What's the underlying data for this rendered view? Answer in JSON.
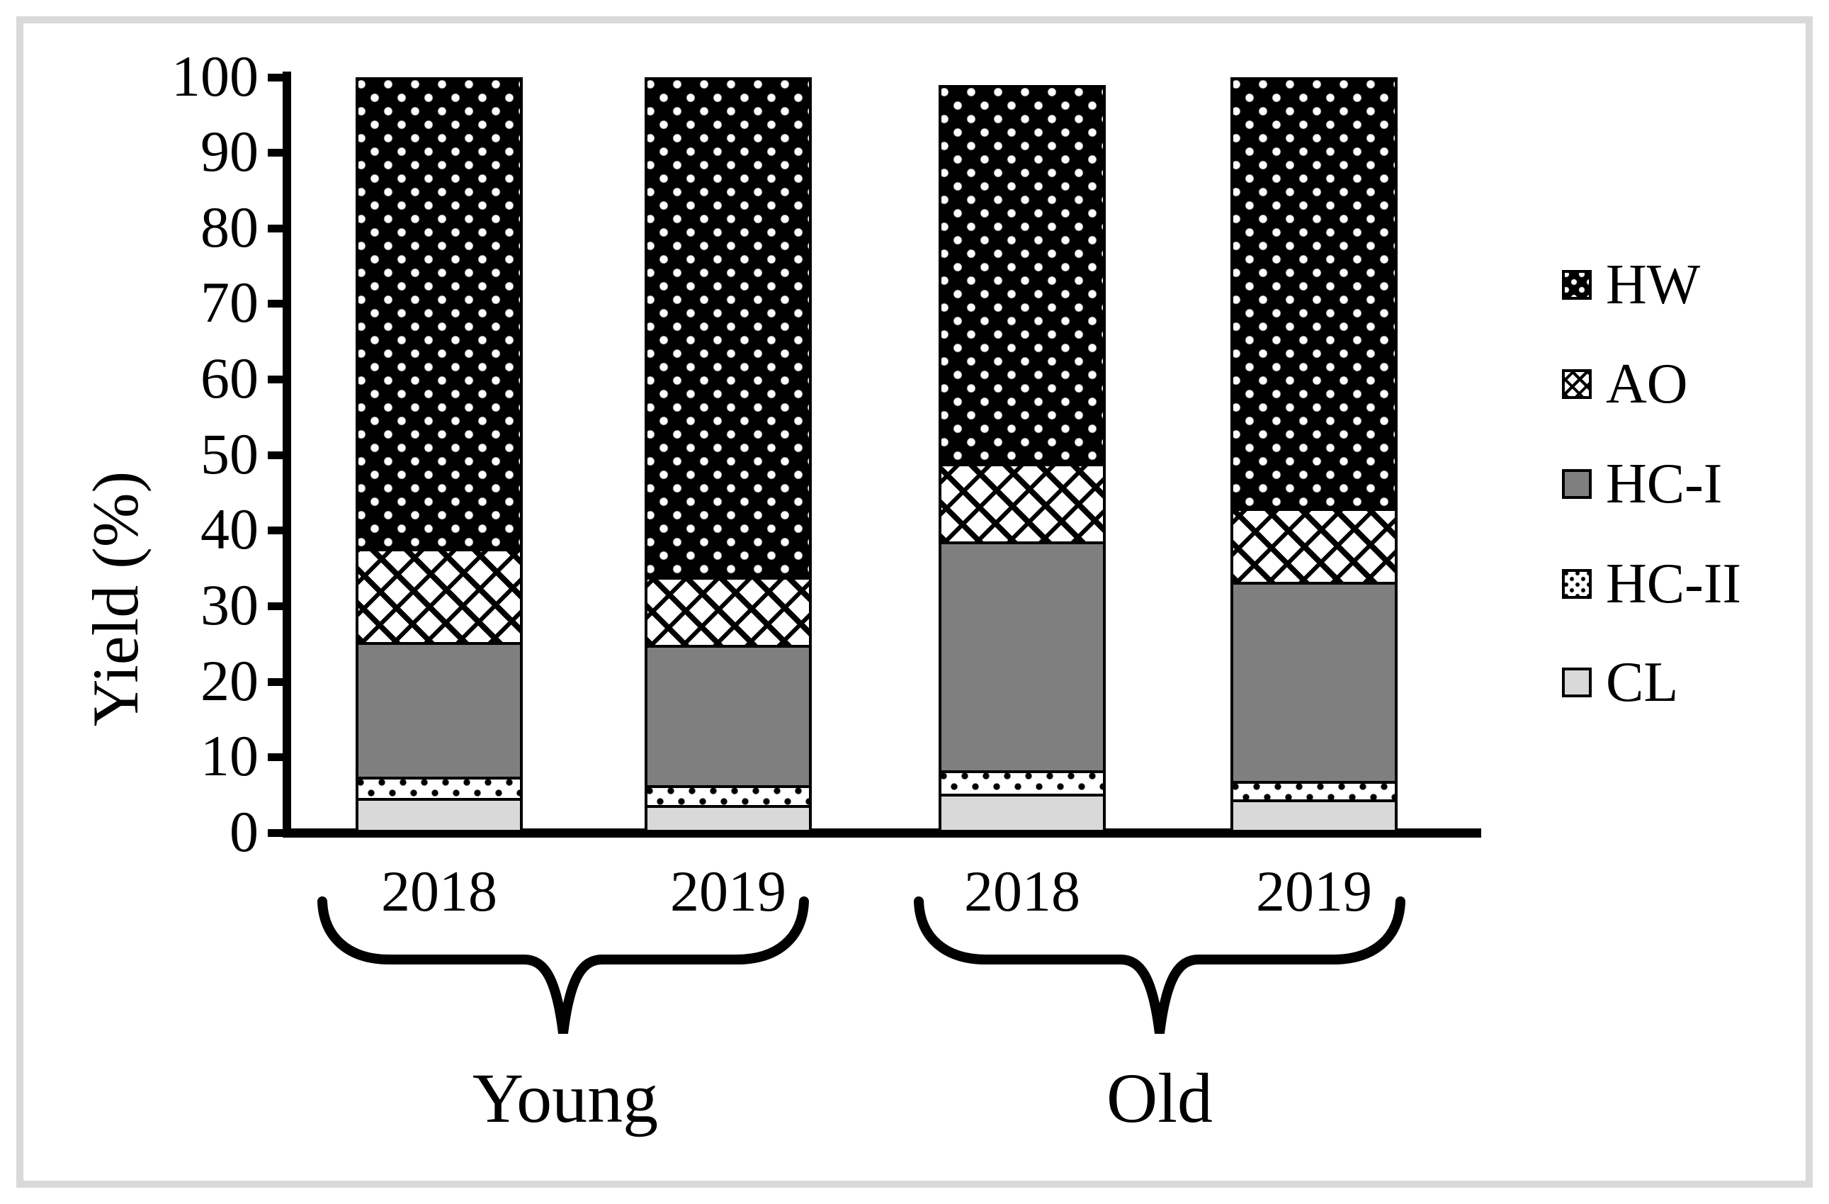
{
  "figure": {
    "border_color": "#d9d9d9",
    "background": "#ffffff"
  },
  "chart_data": {
    "type": "bar",
    "stacked": true,
    "title": "",
    "xlabel": "",
    "ylabel": "Yield (%)",
    "ylim": [
      0,
      100
    ],
    "ytick_step": 10,
    "yticks": [
      0,
      10,
      20,
      30,
      40,
      50,
      60,
      70,
      80,
      90,
      100
    ],
    "grid": false,
    "legend_position": "right",
    "groups": [
      {
        "label": "Young",
        "years": [
          "2018",
          "2019"
        ]
      },
      {
        "label": "Old",
        "years": [
          "2018",
          "2019"
        ]
      }
    ],
    "categories": [
      "Young 2018",
      "Young 2019",
      "Old 2018",
      "Old 2019"
    ],
    "bar_totals": [
      100,
      100,
      99,
      100
    ],
    "series": [
      {
        "name": "CL",
        "pattern": "solid-light",
        "color": "#d9d9d9",
        "values": [
          5.0,
          4.0,
          5.5,
          4.8
        ]
      },
      {
        "name": "HC-II",
        "pattern": "dots-black-on-white",
        "color": "#ffffff",
        "values": [
          2.8,
          2.7,
          3.1,
          2.4
        ]
      },
      {
        "name": "HC-I",
        "pattern": "solid-gray",
        "color": "#7f7f7f",
        "values": [
          17.8,
          18.5,
          30.3,
          26.4
        ]
      },
      {
        "name": "AO",
        "pattern": "diagonal-brick",
        "color": "#ffffff",
        "values": [
          12.4,
          9.0,
          10.3,
          9.7
        ]
      },
      {
        "name": "HW",
        "pattern": "dots-white-on-black",
        "color": "#000000",
        "values": [
          62.0,
          65.8,
          49.7,
          56.7
        ]
      }
    ],
    "legend_order": [
      "HW",
      "AO",
      "HC-I",
      "HC-II",
      "CL"
    ]
  }
}
